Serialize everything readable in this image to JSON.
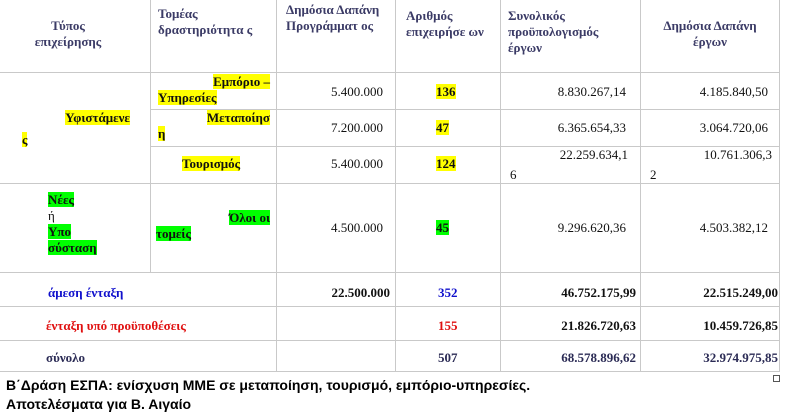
{
  "table": {
    "headers": {
      "business_type": "Τύπος επιχείρησης",
      "sector": "Τομέας δραστηριότητα ς",
      "public_budget": "Δημόσια Δαπάνη Προγράμματ ος",
      "num_businesses": "Αριθμός επιχειρήσε ων",
      "total_budget": "Συνολικός προϋπολογισμός έργων",
      "public_spending": "Δημόσια Δαπάνη έργων"
    },
    "existing_label_1": "Υφιστάμενε",
    "existing_label_2": "ς",
    "rows": [
      {
        "sector_1": "Εμπόριο –",
        "sector_2": "Υπηρεσίες",
        "public_budget": "5.400.000",
        "count": "136",
        "total_1": "8.830.267,14",
        "total_2": "",
        "spend_1": "4.185.840,50",
        "spend_2": ""
      },
      {
        "sector_1": "Μεταποίησ",
        "sector_2": "η",
        "public_budget": "7.200.000",
        "count": "47",
        "total_1": "6.365.654,33",
        "total_2": "",
        "spend_1": "3.064.720,06",
        "spend_2": ""
      },
      {
        "sector_1": "Τουρισμός",
        "sector_2": "",
        "public_budget": "5.400.000",
        "count": "124",
        "total_1": "22.259.634,1",
        "total_2": "6",
        "spend_1": "10.761.306,3",
        "spend_2": "2"
      }
    ],
    "new": {
      "label_1": "Νέες",
      "label_2": "ή",
      "label_3": "Υπο",
      "label_4": "σύσταση",
      "sector_1": "Όλοι οι",
      "sector_2": "τομείς",
      "public_budget": "4.500.000",
      "count": "45",
      "total": "9.296.620,36",
      "spend": "4.503.382,12"
    },
    "direct": {
      "label": "άμεση ένταξη",
      "public_budget": "22.500.000",
      "count": "352",
      "total": "46.752.175,99",
      "spend": "22.515.249,00"
    },
    "conditional": {
      "label": "ένταξη υπό προϋποθέσεις",
      "count": "155",
      "total": "21.826.720,63",
      "spend": "10.459.726,85"
    },
    "sum": {
      "label": "σύνολο",
      "count": "507",
      "total": "68.578.896,62",
      "spend": "32.974.975,85"
    }
  },
  "caption": {
    "line1": "Β΄Δράση ΕΣΠΑ: ενίσχυση ΜΜΕ σε μεταποίηση, τουρισμό, εμπόριο-υπηρεσίες.",
    "line2": "Αποτελέσματα για Β. Αιγαίο"
  },
  "colors": {
    "highlight_yellow": "#ffff00",
    "highlight_green": "#00ff00",
    "blue": "#1010cc",
    "red": "#e01010"
  }
}
